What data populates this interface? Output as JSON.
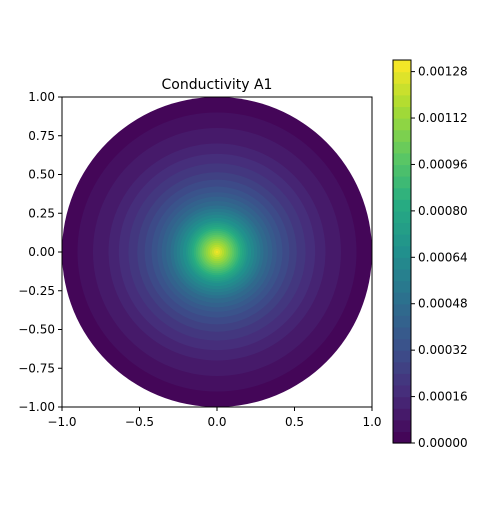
{
  "chart_data": {
    "type": "heatmap",
    "subtype": "filled-contour",
    "title": "Conductivity A1",
    "xlabel": "",
    "ylabel": "",
    "xlim": [
      -1.0,
      1.0
    ],
    "ylim": [
      -1.0,
      1.0
    ],
    "x_ticks": [
      "−1.0",
      "−0.5",
      "0.0",
      "0.5",
      "1.0"
    ],
    "y_ticks": [
      "1.00",
      "0.75",
      "0.50",
      "0.25",
      "0.00",
      "−0.25",
      "−0.50",
      "−0.75",
      "−1.00"
    ],
    "domain": "unit disk",
    "field": {
      "description_of_shape": "radially symmetric peak at origin",
      "center": [
        0.0,
        0.0
      ],
      "peak_value": 0.0013,
      "edge_value": 0.0,
      "falloff": "gaussian-like",
      "radial_profile": [
        {
          "r": 0.0,
          "value": 0.0013
        },
        {
          "r": 0.1,
          "value": 0.001
        },
        {
          "r": 0.2,
          "value": 0.00068
        },
        {
          "r": 0.3,
          "value": 0.00048
        },
        {
          "r": 0.4,
          "value": 0.00034
        },
        {
          "r": 0.5,
          "value": 0.00025
        },
        {
          "r": 0.6,
          "value": 0.00018
        },
        {
          "r": 0.7,
          "value": 0.00012
        },
        {
          "r": 0.8,
          "value": 8e-05
        },
        {
          "r": 0.9,
          "value": 4e-05
        },
        {
          "r": 1.0,
          "value": 0.0
        }
      ]
    },
    "colorbar": {
      "colormap": "viridis",
      "range": [
        0.0,
        0.00132
      ],
      "levels": 33,
      "ticks": [
        0.0,
        0.00016,
        0.00032,
        0.00048,
        0.00064,
        0.0008,
        0.00096,
        0.00112,
        0.00128
      ],
      "tick_labels": [
        "0.00000",
        "0.00016",
        "0.00032",
        "0.00048",
        "0.00064",
        "0.00080",
        "0.00096",
        "0.00112",
        "0.00128"
      ]
    },
    "grid": false
  }
}
